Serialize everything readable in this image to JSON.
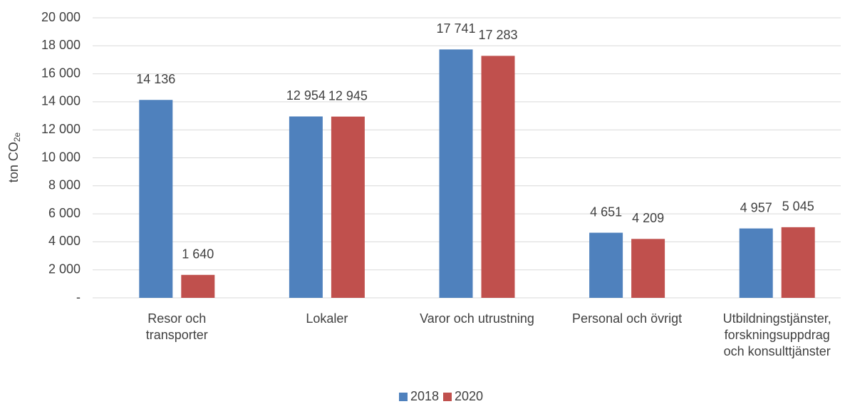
{
  "chart_data": {
    "type": "bar",
    "ylabel": {
      "text": "ton CO",
      "subscript": "2e"
    },
    "categories": [
      [
        "Resor och",
        "transporter"
      ],
      [
        "Lokaler"
      ],
      [
        "Varor och utrustning"
      ],
      [
        "Personal och övrigt"
      ],
      [
        "Utbildningstjänster,",
        "forskningsuppdrag",
        "och konsulttjänster"
      ]
    ],
    "series": [
      {
        "name": "2018",
        "color": "#4f81bd",
        "values": [
          14136,
          12954,
          17741,
          4651,
          4957
        ],
        "value_labels": [
          "14 136",
          "12 954",
          "17 741",
          "4 651",
          "4 957"
        ]
      },
      {
        "name": "2020",
        "color": "#c0504d",
        "values": [
          1640,
          12945,
          17283,
          4209,
          5045
        ],
        "value_labels": [
          "1 640",
          "12 945",
          "17 283",
          "4 209",
          "5 045"
        ]
      }
    ],
    "ylim": [
      0,
      20000
    ],
    "yticks": [
      {
        "value": 0,
        "label": "-"
      },
      {
        "value": 2000,
        "label": "2 000"
      },
      {
        "value": 4000,
        "label": "4 000"
      },
      {
        "value": 6000,
        "label": "6 000"
      },
      {
        "value": 8000,
        "label": "8 000"
      },
      {
        "value": 10000,
        "label": "10 000"
      },
      {
        "value": 12000,
        "label": "12 000"
      },
      {
        "value": 14000,
        "label": "14 000"
      },
      {
        "value": 16000,
        "label": "16 000"
      },
      {
        "value": 18000,
        "label": "18 000"
      },
      {
        "value": 20000,
        "label": "20 000"
      }
    ],
    "grid": true,
    "legend": "bottom"
  }
}
